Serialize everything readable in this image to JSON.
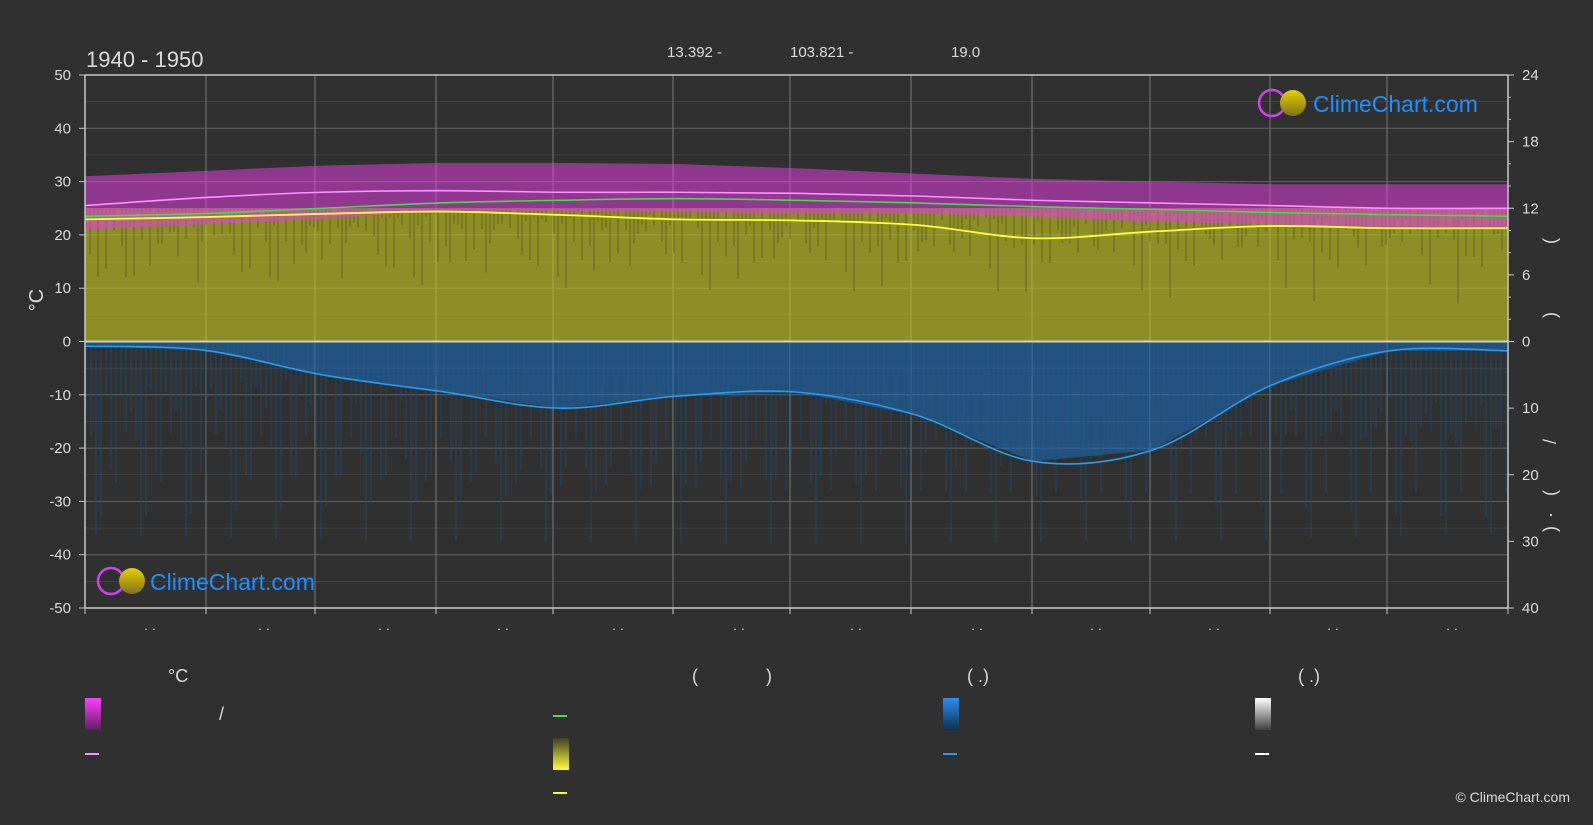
{
  "period": "1940 - 1950",
  "header": {
    "lat": "13.392 -",
    "lon": "103.821 -",
    "elev": "19.0"
  },
  "watermark": "ClimeChart.com",
  "copyright": "© ClimeChart.com",
  "left_axis": {
    "unit_label": "°C",
    "ticks": [
      50,
      40,
      30,
      20,
      10,
      0,
      -10,
      -20,
      -30,
      -40,
      -50
    ],
    "range": [
      -50,
      50
    ]
  },
  "right_axis_top": {
    "ticks": [
      24,
      18,
      12,
      6,
      0
    ],
    "range": [
      0,
      24
    ],
    "fragments": [
      "(",
      ")"
    ]
  },
  "right_axis_bottom": {
    "ticks": [
      10,
      20,
      30,
      40
    ],
    "range": [
      0,
      40
    ],
    "fragments": [
      "/",
      "(",
      "·",
      ")"
    ]
  },
  "month_tick_marks": [
    "· ·",
    "· ·",
    "· ·",
    "· ·",
    "· ·",
    "· ·",
    "· ·",
    "· ·",
    "· ·",
    "· ·",
    "· ·",
    "· ·"
  ],
  "legend": {
    "col1_head": "°C",
    "col1_sep": "/",
    "col2_head_open": "(",
    "col2_head_close": ")",
    "col3_head": "(   .)",
    "col4_head": "(   .)"
  },
  "colors": {
    "background": "#303030",
    "temp_band": "#e040e0",
    "mean_max": "#ff90ff",
    "mean_temp": "#44dd44",
    "sunshine": "#c8c820",
    "sunshine_line": "#ffff40",
    "rain": "#1a6fbf",
    "rain_line": "#2a9cf0",
    "grid": "#6a6a6a",
    "zero_line": "#d0d0d0"
  },
  "chart_data": {
    "type": "area",
    "x": [
      0,
      1,
      2,
      3,
      4,
      5,
      6,
      7,
      8,
      9,
      10,
      11,
      12
    ],
    "xlim": [
      0,
      12
    ],
    "ylim": [
      -50,
      50
    ],
    "series": [
      {
        "values": [
          25.5,
          27.0,
          28.0,
          28.3,
          28.0,
          28.0,
          27.8,
          27.3,
          26.5,
          26.0,
          25.5,
          25.0,
          25.0
        ]
      },
      {
        "values": [
          23.5,
          24.0,
          25.0,
          26.0,
          26.5,
          26.8,
          26.5,
          26.0,
          25.3,
          24.8,
          24.2,
          23.8,
          23.5
        ]
      },
      {
        "values": [
          11.0,
          11.2,
          11.5,
          11.7,
          11.4,
          11.0,
          10.9,
          10.5,
          9.3,
          9.9,
          10.4,
          10.2,
          10.2
        ],
        "axis": "right_top_hours"
      },
      {
        "values": [
          0.7,
          1.3,
          5.0,
          7.5,
          10.0,
          8.2,
          7.6,
          11.0,
          18.0,
          16.3,
          6.6,
          1.4,
          1.4
        ],
        "axis": "right_bottom"
      }
    ],
    "band_top": [
      31,
      32,
      33,
      33.5,
      33.5,
      33.3,
      32.5,
      31.5,
      30.5,
      30,
      29.5,
      29.5,
      29.5
    ],
    "band_bottom": [
      21,
      22,
      23,
      24.5,
      24.5,
      24.3,
      24,
      24,
      23.5,
      22.5,
      22,
      21.5,
      21
    ]
  }
}
